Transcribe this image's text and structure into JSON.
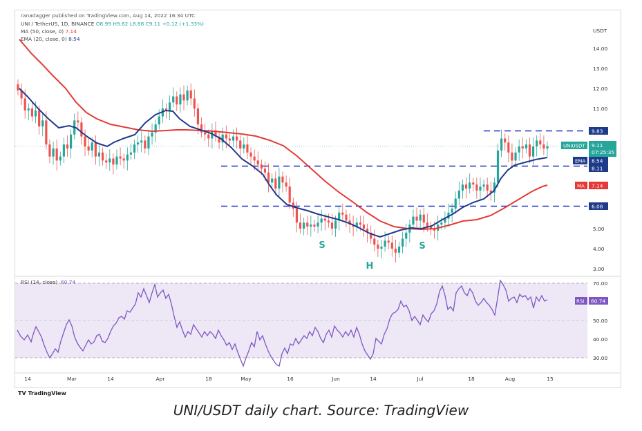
{
  "publisher": "ranadagger published on TradingView.com, Aug 14, 2022 16:34 UTC",
  "legend": {
    "symbol": "UNI / TetherUS, 1D, BINANCE",
    "ohlc": "O8.99  H9.62  L8.88  C9.11  +0.12 (+1.33%)",
    "ma_label": "MA (50, close, 0)",
    "ma_value": "7.14",
    "ema_label": "EMA (20, close, 0)",
    "ema_value": "8.54"
  },
  "rsi_legend": {
    "label": "RSI (14, close)",
    "value": "60.74"
  },
  "axis_currency": "USDT",
  "price_ticks": [
    "14.00",
    "13.00",
    "12.00",
    "11.00",
    "10.00",
    "9.00",
    "8.00",
    "7.00",
    "6.00",
    "5.00",
    "4.00",
    "3.00"
  ],
  "rsi_ticks": [
    "70.00",
    "60.00",
    "50.00",
    "40.00",
    "30.00"
  ],
  "x_ticks": [
    "14",
    "Mar",
    "14",
    "Apr",
    "18",
    "May",
    "16",
    "Jun",
    "14",
    "Jul",
    "18",
    "Aug",
    "15"
  ],
  "price_labels": {
    "current": "UNIUSDT",
    "current_value": "9.11",
    "countdown": "07:25:35",
    "ema_tag": "EMA",
    "ema_value": "8.54",
    "ma_tag": "MA",
    "ma_value": "7.14",
    "level_983": "9.83",
    "level_811": "8.11",
    "level_608": "6.08",
    "rsi_tag": "RSI",
    "rsi_value": "60.74"
  },
  "pattern_labels": {
    "left_shoulder": "S",
    "head": "H",
    "right_shoulder": "S"
  },
  "brand": "TradingView",
  "caption": "UNI/USDT daily chart. Source: TradingView",
  "colors": {
    "up": "#26a69a",
    "down": "#ef5350",
    "ema": "#1e3a8a",
    "ma": "#e53935",
    "level": "#1a2dbf",
    "rsi": "#7e57c2",
    "rsi_band": "#ede7f6"
  },
  "chart_data": {
    "type": "line",
    "title": "",
    "xlabel": "",
    "ylabel": "USDT",
    "ylim": [
      2.6,
      15
    ],
    "x": [
      "Feb 14",
      "Mar 1",
      "Mar 14",
      "Apr 1",
      "Apr 18",
      "May 1",
      "May 16",
      "Jun 1",
      "Jun 14",
      "Jul 1",
      "Jul 18",
      "Aug 1",
      "Aug 14"
    ],
    "series": [
      {
        "name": "Close",
        "values": [
          9.6,
          8.8,
          8.5,
          11.7,
          9.7,
          8.3,
          5.2,
          5.1,
          4.1,
          5.0,
          7.1,
          8.3,
          9.11
        ]
      },
      {
        "name": "EMA (20, close, 0)",
        "values": [
          11.3,
          9.8,
          8.5,
          9.7,
          10.3,
          8.7,
          6.5,
          5.5,
          4.6,
          5.0,
          6.2,
          7.6,
          8.54
        ]
      },
      {
        "name": "MA (50, close, 0)",
        "values": [
          14.8,
          11.8,
          9.9,
          9.7,
          9.6,
          9.3,
          8.0,
          6.4,
          5.3,
          4.8,
          5.4,
          6.1,
          7.14
        ]
      }
    ],
    "horizontal_levels": [
      9.83,
      8.11,
      6.08
    ],
    "rsi": {
      "ylim": [
        25,
        72
      ],
      "x": [
        "Feb 14",
        "Mar 1",
        "Mar 14",
        "Apr 1",
        "Apr 18",
        "May 1",
        "May 16",
        "Jun 1",
        "Jun 14",
        "Jul 1",
        "Jul 18",
        "Aug 1",
        "Aug 14"
      ],
      "values": [
        46,
        43,
        47,
        67,
        45,
        40,
        28,
        42,
        32,
        54,
        63,
        64,
        60.74
      ],
      "bands": [
        70,
        30
      ]
    }
  }
}
